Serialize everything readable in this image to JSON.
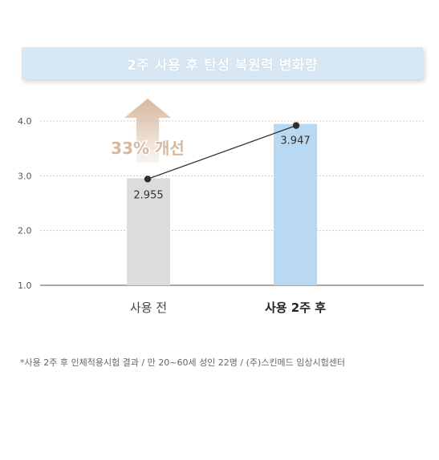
{
  "chart_data": {
    "type": "bar",
    "title": "2주 사용 후 탄성 복원력 변화량",
    "categories": [
      "사용 전",
      "사용 2주 후"
    ],
    "values": [
      2.955,
      3.947
    ],
    "value_labels": [
      "2.955",
      "3.947"
    ],
    "yticks": [
      "4.0",
      "3.0",
      "2.0",
      "1.0"
    ],
    "ylim": [
      1.0,
      4.0
    ],
    "grid": true,
    "bar_colors": [
      "#dcdcdc",
      "#b9d9f2"
    ],
    "connector_line": true,
    "annotation": "33% 개선",
    "annotation_color": "#d7b89e"
  },
  "footnote": "*사용 2주 후 인체적용시험 결과 / 만 20~60세 성인 22명 / (주)스킨메드 임상시험센터"
}
